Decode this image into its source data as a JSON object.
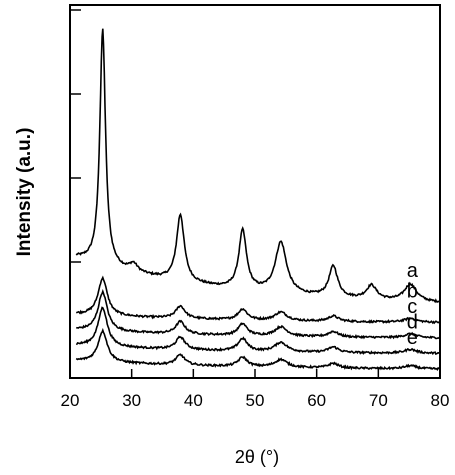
{
  "chart_data": {
    "type": "line",
    "title": "",
    "xlabel": "2θ (°)",
    "ylabel": "Intensity (a.u.)",
    "xlim": [
      20,
      80
    ],
    "x_ticks": [
      "20",
      "30",
      "40",
      "50",
      "60",
      "70",
      "80"
    ],
    "y_ticks_labeled": false,
    "ylim": [
      0,
      23
    ],
    "grid": false,
    "series": [
      {
        "name": "a",
        "baseline": 4,
        "tail": 3.2,
        "noise": 0.06,
        "peaks": [
          {
            "x": 25.3,
            "h": 15.2,
            "w": 0.55
          },
          {
            "x": 30.3,
            "h": 0.5,
            "w": 0.8
          },
          {
            "x": 37.9,
            "h": 4.3,
            "w": 0.75
          },
          {
            "x": 48.0,
            "h": 3.8,
            "w": 0.75
          },
          {
            "x": 54.2,
            "h": 3.3,
            "w": 1.1
          },
          {
            "x": 62.7,
            "h": 2.0,
            "w": 0.85
          },
          {
            "x": 68.9,
            "h": 0.9,
            "w": 1.0
          },
          {
            "x": 75.2,
            "h": 1.1,
            "w": 1.2
          }
        ]
      },
      {
        "name": "b",
        "baseline": 3,
        "tail": 0.6,
        "noise": 0.06,
        "peaks": [
          {
            "x": 25.3,
            "h": 2.4,
            "w": 0.9
          },
          {
            "x": 37.9,
            "h": 0.8,
            "w": 0.9
          },
          {
            "x": 48.0,
            "h": 0.7,
            "w": 0.9
          },
          {
            "x": 54.2,
            "h": 0.55,
            "w": 1.2
          },
          {
            "x": 62.7,
            "h": 0.35,
            "w": 1.0
          },
          {
            "x": 75.2,
            "h": 0.25,
            "w": 1.2
          }
        ]
      },
      {
        "name": "c",
        "baseline": 2,
        "tail": 0.6,
        "noise": 0.06,
        "peaks": [
          {
            "x": 25.3,
            "h": 2.5,
            "w": 0.9
          },
          {
            "x": 37.9,
            "h": 0.8,
            "w": 0.9
          },
          {
            "x": 48.0,
            "h": 0.75,
            "w": 0.9
          },
          {
            "x": 54.2,
            "h": 0.6,
            "w": 1.2
          },
          {
            "x": 62.7,
            "h": 0.35,
            "w": 1.0
          },
          {
            "x": 75.2,
            "h": 0.25,
            "w": 1.2
          }
        ]
      },
      {
        "name": "d",
        "baseline": 1,
        "tail": 0.6,
        "noise": 0.06,
        "peaks": [
          {
            "x": 25.3,
            "h": 2.5,
            "w": 0.9
          },
          {
            "x": 37.9,
            "h": 0.8,
            "w": 0.9
          },
          {
            "x": 48.0,
            "h": 0.8,
            "w": 0.9
          },
          {
            "x": 54.2,
            "h": 0.6,
            "w": 1.2
          },
          {
            "x": 62.7,
            "h": 0.35,
            "w": 1.0
          },
          {
            "x": 75.2,
            "h": 0.25,
            "w": 1.2
          }
        ]
      },
      {
        "name": "e",
        "baseline": 0,
        "tail": 0.6,
        "noise": 0.06,
        "peaks": [
          {
            "x": 25.3,
            "h": 2.0,
            "w": 0.9
          },
          {
            "x": 37.9,
            "h": 0.65,
            "w": 0.9
          },
          {
            "x": 48.0,
            "h": 0.6,
            "w": 0.9
          },
          {
            "x": 54.2,
            "h": 0.5,
            "w": 1.2
          },
          {
            "x": 62.7,
            "h": 0.3,
            "w": 1.0
          },
          {
            "x": 75.2,
            "h": 0.2,
            "w": 1.2
          }
        ]
      }
    ],
    "line_color": "#000000"
  }
}
